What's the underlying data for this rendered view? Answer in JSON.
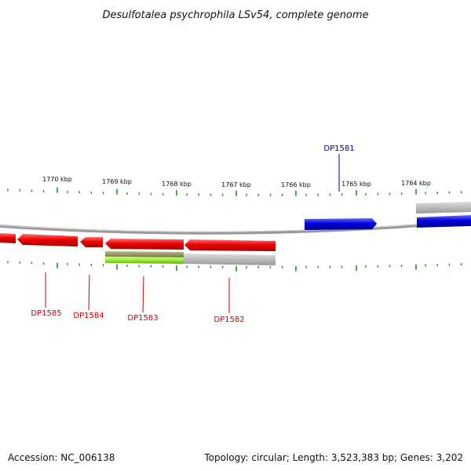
{
  "title": "Desulfotalea psychrophila LSv54, complete genome",
  "colors": {
    "backbone": "#888888",
    "tick": "#2e8b2e",
    "forward_gene": "#0000dd",
    "reverse_gene": "#ee0000",
    "forward_label": "#00008b",
    "reverse_label": "#cc0000",
    "feature_gray": "#bbbbbb",
    "feature_green": "#99ee33",
    "feature_olive": "#999966"
  },
  "scale": {
    "unit": "kbp",
    "major_ticks": [
      {
        "label": "1770 kbp"
      },
      {
        "label": "1769 kbp"
      },
      {
        "label": "1768 kbp"
      },
      {
        "label": "1767 kbp"
      },
      {
        "label": "1766 kbp"
      },
      {
        "label": "1765 kbp"
      },
      {
        "label": "1764 kbp"
      }
    ]
  },
  "genes": [
    {
      "name": "DP1581",
      "strand": "forward",
      "labeled": true
    },
    {
      "name": "DP1582",
      "strand": "reverse",
      "labeled": true
    },
    {
      "name": "DP1583",
      "strand": "reverse",
      "labeled": true
    },
    {
      "name": "DP1584",
      "strand": "reverse",
      "labeled": true
    },
    {
      "name": "DP1585",
      "strand": "reverse",
      "labeled": true
    }
  ],
  "footer": {
    "accession": "Accession: NC_006138",
    "summary": "Topology: circular; Length: 3,523,383 bp; Genes: 3,202"
  }
}
